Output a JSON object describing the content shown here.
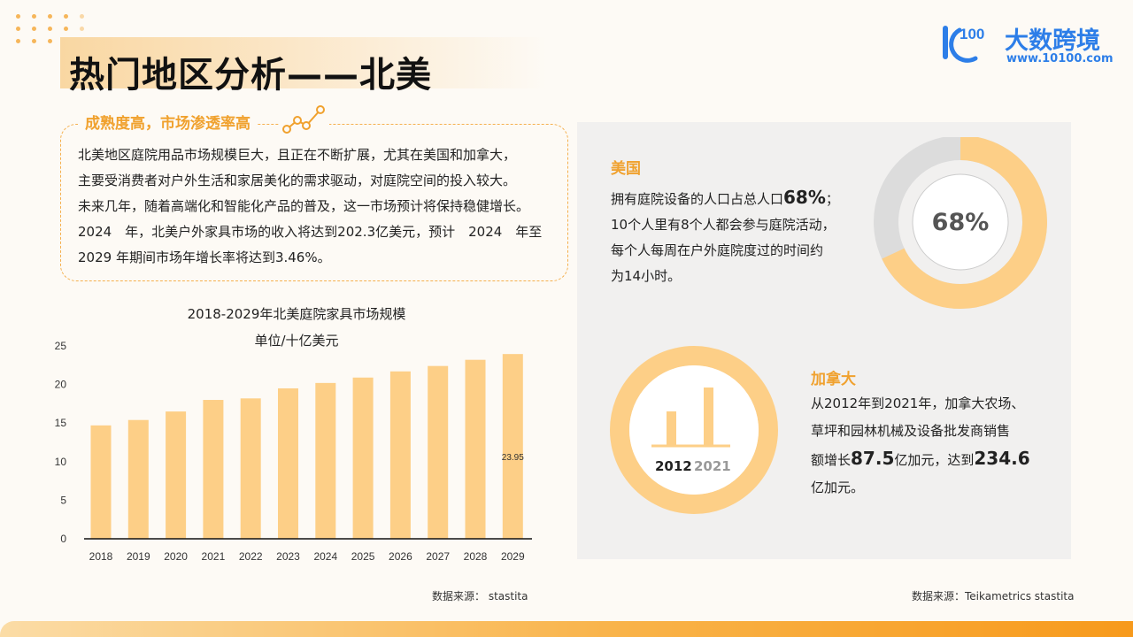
{
  "title": "热门地区分析——北美",
  "logo": {
    "name": "大数跨境",
    "url": "www.10100.com",
    "mark_text": "100"
  },
  "left_section": {
    "heading": "成熟度高，市场渗透率高",
    "lines": [
      "北美地区庭院用品市场规模巨大，且正在不断扩展，尤其在美国和加拿大，",
      "主要受消费者对户外生活和家居美化的需求驱动，对庭院空间的投入较大。",
      "未来几年，随着高端化和智能化产品的普及，这一市场预计将保持稳健增长。",
      "2024　年，北美户外家具市场的收入将达到202.3亿美元，预计　2024　年至",
      "2029 年期间市场年增长率将达到3.46%。"
    ]
  },
  "chart_data": {
    "type": "bar",
    "title": "2018-2029年北美庭院家具市场规模",
    "subtitle": "单位/十亿美元",
    "categories": [
      "2018",
      "2019",
      "2020",
      "2021",
      "2022",
      "2023",
      "2024",
      "2025",
      "2026",
      "2027",
      "2028",
      "2029"
    ],
    "values": [
      14.7,
      15.4,
      16.5,
      18.0,
      18.2,
      19.5,
      20.2,
      20.9,
      21.7,
      22.4,
      23.2,
      23.95
    ],
    "ylim": [
      0,
      25
    ],
    "yticks": [
      0,
      5,
      10,
      15,
      20,
      25
    ],
    "data_labels": [
      {
        "category": "2029",
        "text": "23.95"
      }
    ],
    "bar_color": "#fdcf87",
    "grid": false
  },
  "source_left": "数据来源：  stastita",
  "us": {
    "heading": "美国",
    "line1_prefix": "拥有庭院设备的人口占总人口",
    "line1_value": "68%",
    "line1_suffix": "；",
    "line2": "10个人里有8个人都会参与庭院活动，",
    "line3": "每个人每周在户外庭院度过的时间约",
    "line4": "为14小时。",
    "ring_percent": 68,
    "ring_label": "68%"
  },
  "canada": {
    "heading": "加拿大",
    "line1": "从2012年到2021年，加拿大农场、",
    "line2": "草坪和园林机械及设备批发商销售",
    "line3_prefix": "额增长",
    "line3_value": "87.5",
    "line3_mid": "亿加元，达到",
    "line3_value2": "234.6",
    "line4": "亿加元。",
    "year1": "2012",
    "year2": "2021"
  },
  "source_right": "数据来源：Teikametrics  stastita",
  "colors": {
    "accent": "#f0a12e",
    "bar": "#fdcf87",
    "ring": "#fdcf87",
    "ring_bg": "#dcdcdc",
    "brand_blue": "#2d7ee8"
  }
}
